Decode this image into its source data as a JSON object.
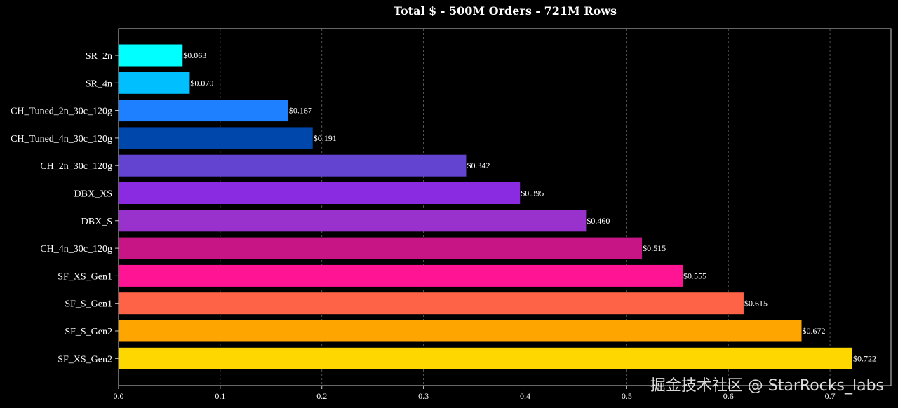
{
  "chart_data": {
    "type": "bar",
    "orientation": "horizontal",
    "title": "Total $ - 500M Orders - 721M Rows",
    "xlabel": "",
    "ylabel": "",
    "xlim": [
      0,
      0.76
    ],
    "x_ticks": [
      0.0,
      0.1,
      0.2,
      0.3,
      0.4,
      0.5,
      0.6,
      0.7
    ],
    "x_tick_labels": [
      "0.0",
      "0.1",
      "0.2",
      "0.3",
      "0.4",
      "0.5",
      "0.6",
      "0.7"
    ],
    "grid": "vertical dashed",
    "value_label_prefix": "$",
    "categories": [
      "SR_2n",
      "SR_4n",
      "CH_Tuned_2n_30c_120g",
      "CH_Tuned_4n_30c_120g",
      "CH_2n_30c_120g",
      "DBX_XS",
      "DBX_S",
      "CH_4n_30c_120g",
      "SF_XS_Gen1",
      "SF_S_Gen1",
      "SF_S_Gen2",
      "SF_XS_Gen2"
    ],
    "values": [
      0.063,
      0.07,
      0.167,
      0.191,
      0.342,
      0.395,
      0.46,
      0.515,
      0.555,
      0.615,
      0.672,
      0.722
    ],
    "value_labels": [
      "$0.063",
      "$0.070",
      "$0.167",
      "$0.191",
      "$0.342",
      "$0.395",
      "$0.460",
      "$0.515",
      "$0.555",
      "$0.615",
      "$0.672",
      "$0.722"
    ],
    "colors": [
      "#00ffff",
      "#00bfff",
      "#1e7fff",
      "#0047ab",
      "#6244d0",
      "#8a2be2",
      "#9932cc",
      "#c71585",
      "#ff1493",
      "#ff6347",
      "#ffa500",
      "#ffd700"
    ]
  },
  "watermark": "掘金技术社区 @ StarRocks_labs"
}
